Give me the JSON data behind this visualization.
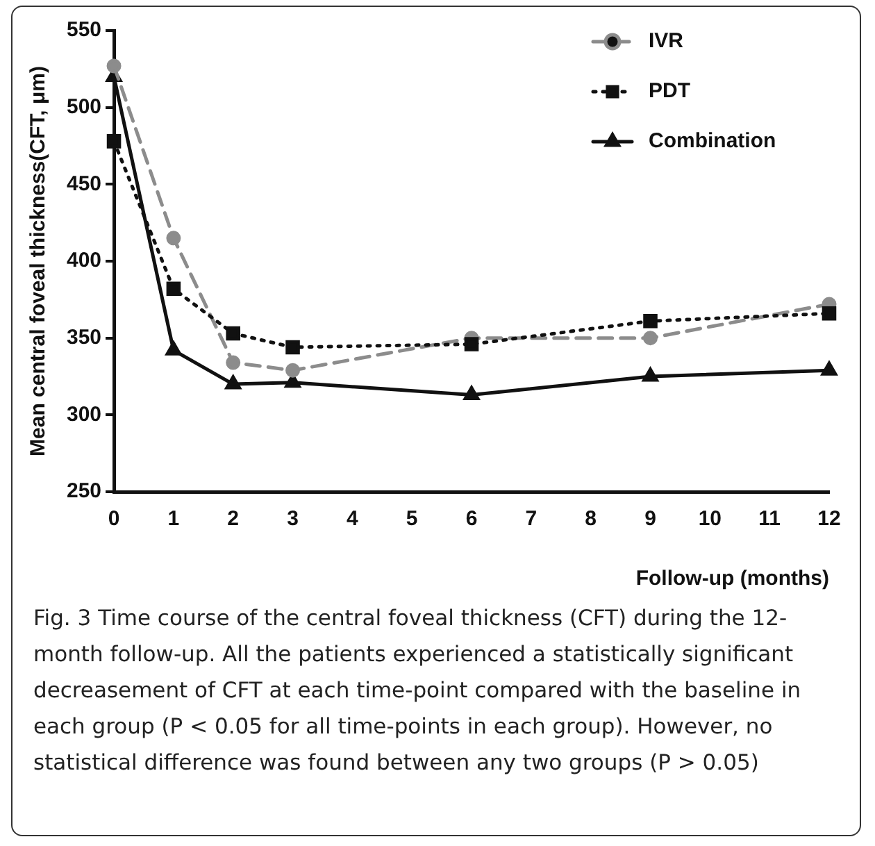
{
  "chart_data": {
    "type": "line",
    "xlabel": "Follow-up (months)",
    "ylabel": "Mean central foveal thickness(CFT, μm)",
    "x": [
      0,
      1,
      2,
      3,
      6,
      9,
      12
    ],
    "series": [
      {
        "name": "IVR",
        "color": "#8c8c8c",
        "marker": "circle",
        "line_style": "dashed",
        "values": [
          527,
          415,
          334,
          329,
          350,
          350,
          372
        ]
      },
      {
        "name": "PDT",
        "color": "#111111",
        "marker": "square",
        "line_style": "dotted",
        "values": [
          478,
          382,
          353,
          344,
          346,
          361,
          366
        ]
      },
      {
        "name": "Combination",
        "color": "#111111",
        "marker": "triangle",
        "line_style": "solid",
        "values": [
          520,
          342,
          320,
          321,
          313,
          325,
          329
        ]
      }
    ],
    "xlim": [
      0,
      12
    ],
    "xticks": [
      0,
      1,
      2,
      3,
      4,
      5,
      6,
      7,
      8,
      9,
      10,
      11,
      12
    ],
    "ylim": [
      250,
      550
    ],
    "yticks": [
      250,
      300,
      350,
      400,
      450,
      500,
      550
    ],
    "grid": false,
    "legend": "top right",
    "annotations": [
      "Fig. 3 Time course of the central foveal thickness (CFT) during the 12-month follow-up. All the patients experienced a statistically significant decreasement of CFT at each time-point compared with the baseline in each group (P < 0.05 for all time-points in each group). However, no statistical difference was found between any two groups (P > 0.05)"
    ]
  }
}
